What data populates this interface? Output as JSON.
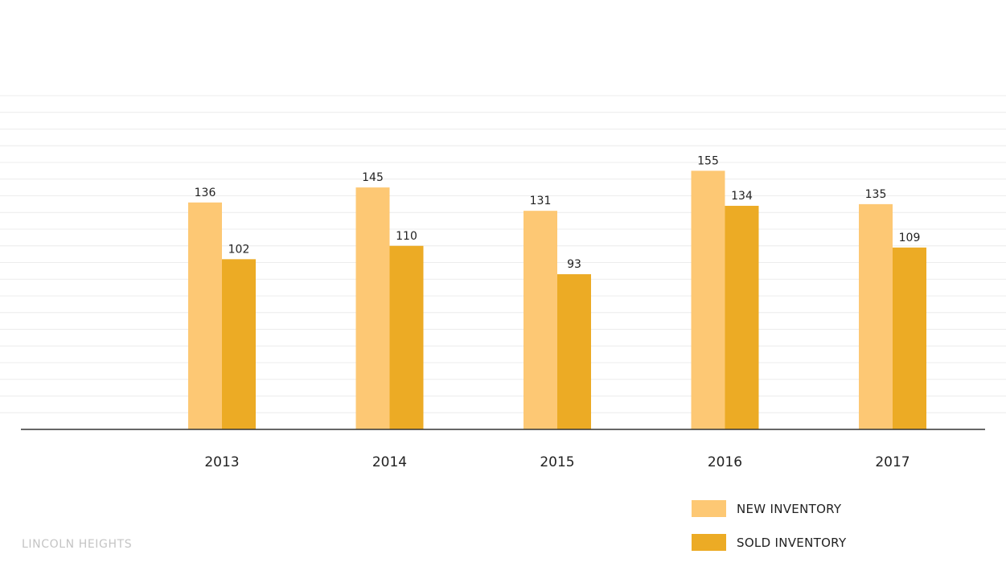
{
  "colors": {
    "new_inventory": "#fdc874",
    "sold_inventory": "#ecab25",
    "axis": "#333333",
    "gridline": "#ececec"
  },
  "chart_data": {
    "type": "bar",
    "categories": [
      "2013",
      "2014",
      "2015",
      "2016",
      "2017"
    ],
    "series": [
      {
        "name": "NEW INVENTORY",
        "values": [
          136,
          145,
          131,
          155,
          135
        ]
      },
      {
        "name": "SOLD INVENTORY",
        "values": [
          102,
          110,
          93,
          134,
          109
        ]
      }
    ],
    "ylim": [
      0,
      200
    ],
    "grid": true,
    "legend_position": "bottom-right",
    "show_data_labels": true
  },
  "legend": {
    "items": [
      {
        "label": "NEW INVENTORY",
        "color": "#fdc874"
      },
      {
        "label": "SOLD INVENTORY",
        "color": "#ecab25"
      }
    ]
  },
  "footer": {
    "label": "LINCOLN HEIGHTS"
  }
}
